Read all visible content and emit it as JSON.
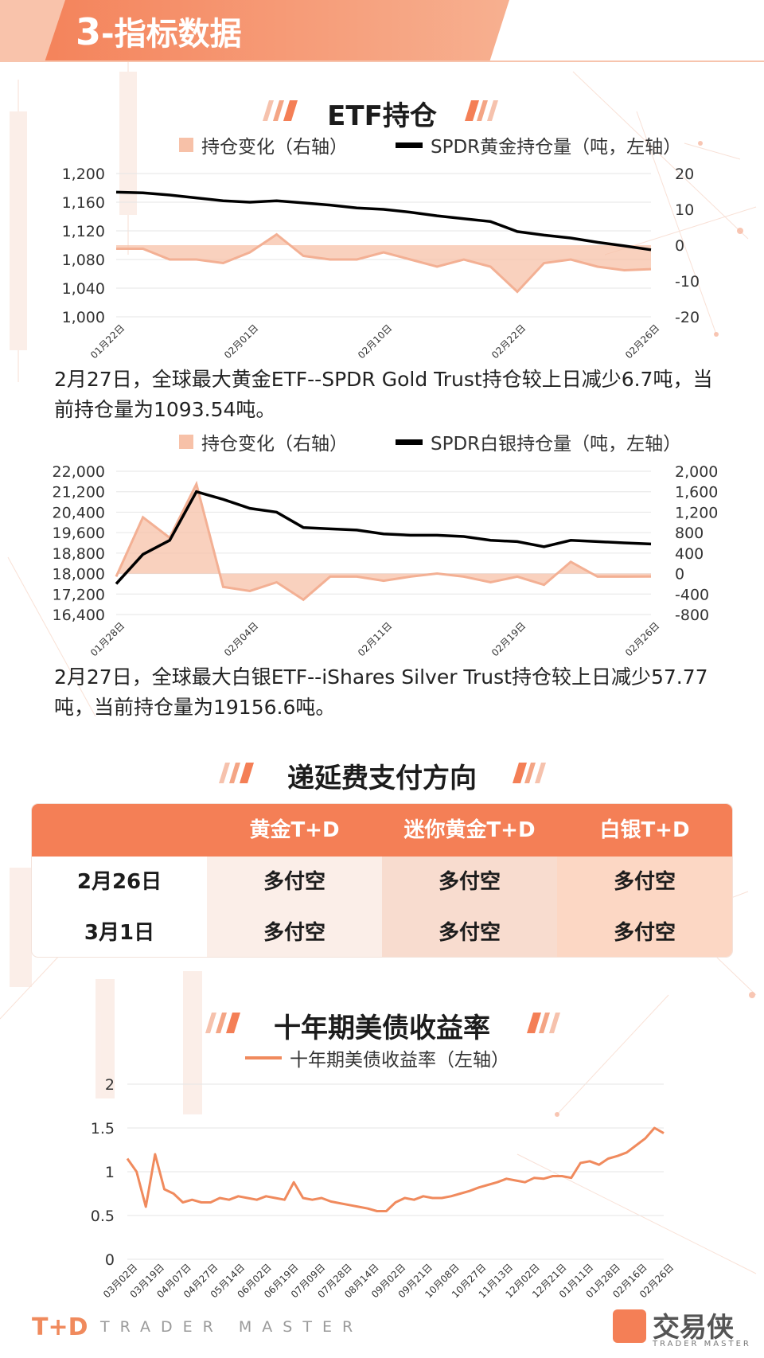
{
  "header": {
    "number": "3",
    "title": "-指标数据"
  },
  "sections": {
    "etf": "ETF持仓",
    "fee": "递延费支付方向",
    "bond": "十年期美债收益率"
  },
  "colors": {
    "accent": "#f47f56",
    "area": "#f7c1a8",
    "line": "#000000",
    "bond_line": "#f08a5d"
  },
  "gold_note": "2月27日，全球最大黄金ETF--SPDR Gold Trust持仓较上日减少6.7吨，当前持仓量为1093.54吨。",
  "silver_note": "2月27日，全球最大白银ETF--iShares Silver Trust持仓较上日减少57.77吨，当前持仓量为19156.6吨。",
  "fee_table": {
    "headers": [
      "",
      "黄金T+D",
      "迷你黄金T+D",
      "白银T+D"
    ],
    "rows": [
      {
        "date": "2月26日",
        "values": [
          "多付空",
          "多付空",
          "多付空"
        ]
      },
      {
        "date": "3月1日",
        "values": [
          "多付空",
          "多付空",
          "多付空"
        ]
      }
    ]
  },
  "footer": {
    "brand": "T+D",
    "tagline": "TRADER MASTER",
    "logo": "交易侠",
    "logo_sub": "TRADER MASTER"
  },
  "chart_data": [
    {
      "type": "line",
      "legend": {
        "area": "持仓变化（右轴）",
        "line": "SPDR黄金持仓量（吨，左轴）"
      },
      "x_labels": [
        "01月22日",
        "02月01日",
        "02月10日",
        "02月22日",
        "02月26日"
      ],
      "left_axis": {
        "ylim": [
          1000,
          1200
        ],
        "ticks": [
          "1,200",
          "1,160",
          "1,120",
          "1,080",
          "1,040",
          "1,000"
        ]
      },
      "right_axis": {
        "ylim": [
          -20,
          20
        ],
        "ticks": [
          "20",
          "10",
          "0",
          "-10",
          "-20"
        ]
      },
      "series": [
        {
          "name": "SPDR黄金持仓量（吨，左轴）",
          "axis": "left",
          "values": [
            1174,
            1173,
            1170,
            1166,
            1162,
            1160,
            1162,
            1159,
            1156,
            1152,
            1150,
            1146,
            1141,
            1137,
            1133,
            1119,
            1114,
            1110,
            1104,
            1099,
            1093.54
          ]
        },
        {
          "name": "持仓变化（右轴）",
          "axis": "right",
          "values": [
            -1,
            -1,
            -4,
            -4,
            -5,
            -2,
            3,
            -3,
            -4,
            -4,
            -2,
            -4,
            -6,
            -4,
            -6,
            -13,
            -5,
            -4,
            -6,
            -7,
            -6.7
          ]
        }
      ]
    },
    {
      "type": "line",
      "legend": {
        "area": "持仓变化（右轴）",
        "line": "SPDR白银持仓量（吨，左轴）"
      },
      "x_labels": [
        "01月28日",
        "02月04日",
        "02月11日",
        "02月19日",
        "02月26日"
      ],
      "left_axis": {
        "ylim": [
          16400,
          22000
        ],
        "ticks": [
          "22,000",
          "21,200",
          "20,400",
          "19,600",
          "18,800",
          "18,000",
          "17,200",
          "16,400"
        ]
      },
      "right_axis": {
        "ylim": [
          -800,
          2000
        ],
        "ticks": [
          "2,000",
          "1,600",
          "1,200",
          "800",
          "400",
          "0",
          "-400",
          "-800"
        ]
      },
      "series": [
        {
          "name": "SPDR白银持仓量（吨，左轴）",
          "axis": "left",
          "values": [
            17600,
            18750,
            19300,
            21200,
            20900,
            20550,
            20400,
            19800,
            19750,
            19700,
            19550,
            19500,
            19500,
            19450,
            19300,
            19250,
            19050,
            19300,
            19250,
            19200,
            19156.6
          ]
        },
        {
          "name": "持仓变化（右轴）",
          "axis": "right",
          "values": [
            -60,
            1100,
            700,
            1750,
            -260,
            -340,
            -170,
            -510,
            -60,
            -60,
            -140,
            -60,
            0,
            -60,
            -170,
            -60,
            -220,
            230,
            -60,
            -60,
            -57.77
          ]
        }
      ]
    },
    {
      "type": "line",
      "legend": "十年期美债收益率（左轴）",
      "x_labels": [
        "03月02日",
        "03月19日",
        "04月07日",
        "04月27日",
        "05月14日",
        "06月02日",
        "06月19日",
        "07月09日",
        "07月28日",
        "08月14日",
        "09月02日",
        "09月21日",
        "10月08日",
        "10月27日",
        "11月13日",
        "12月02日",
        "12月21日",
        "01月11日",
        "01月28日",
        "02月16日",
        "02月26日"
      ],
      "ylim": [
        0,
        2
      ],
      "y_ticks": [
        "2",
        "1.5",
        "1",
        "0.5",
        "0"
      ],
      "series": [
        {
          "name": "十年期美债收益率（左轴）",
          "values": [
            1.15,
            1.0,
            0.6,
            1.2,
            0.8,
            0.75,
            0.65,
            0.68,
            0.65,
            0.65,
            0.7,
            0.68,
            0.72,
            0.7,
            0.68,
            0.72,
            0.7,
            0.68,
            0.88,
            0.7,
            0.68,
            0.7,
            0.66,
            0.64,
            0.62,
            0.6,
            0.58,
            0.55,
            0.55,
            0.65,
            0.7,
            0.68,
            0.72,
            0.7,
            0.7,
            0.72,
            0.75,
            0.78,
            0.82,
            0.85,
            0.88,
            0.92,
            0.9,
            0.88,
            0.93,
            0.92,
            0.95,
            0.95,
            0.93,
            1.1,
            1.12,
            1.08,
            1.15,
            1.18,
            1.22,
            1.3,
            1.38,
            1.5,
            1.44
          ]
        }
      ]
    }
  ]
}
